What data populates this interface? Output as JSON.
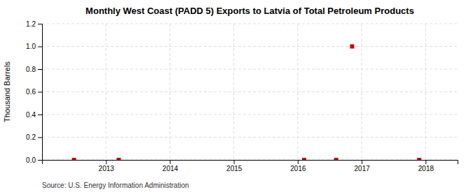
{
  "chart_data": {
    "type": "scatter",
    "title": "Monthly West Coast (PADD 5) Exports to Latvia of Total Petroleum Products",
    "y_label": "Thousand Barrels",
    "source": "Source: U.S. Energy Information Administration",
    "x": [
      2012.5,
      2013.2,
      2016.1,
      2016.6,
      2016.85,
      2017.9
    ],
    "values": [
      0.0,
      0.0,
      0.0,
      0.0,
      1.0,
      0.0
    ],
    "color": "#cc0000",
    "marker": "square",
    "xlim": [
      2012.0,
      2018.5
    ],
    "ylim": [
      0.0,
      1.2
    ],
    "xticks": [
      2013,
      2014,
      2015,
      2016,
      2017,
      2018
    ],
    "yticks": [
      {
        "value": 0.0,
        "label": "0.0"
      },
      {
        "value": 0.2,
        "label": "0.2"
      },
      {
        "value": 0.4,
        "label": "0.4"
      },
      {
        "value": 0.6,
        "label": "0.6"
      },
      {
        "value": 0.8,
        "label": "0.8"
      },
      {
        "value": 1.0,
        "label": "1.0"
      },
      {
        "value": 1.2,
        "label": "1.2"
      }
    ],
    "grid": true
  }
}
